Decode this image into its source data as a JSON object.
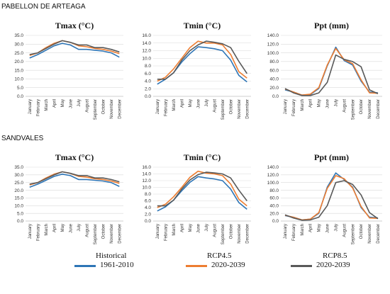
{
  "sections": [
    {
      "title": "PABELLON DE ARTEAGA"
    },
    {
      "title": "SANDVALES"
    }
  ],
  "months": [
    "January",
    "February",
    "March",
    "April",
    "May",
    "June",
    "July",
    "August",
    "September",
    "October",
    "November",
    "December"
  ],
  "series_meta": [
    {
      "name_top": "Historical",
      "name_bottom": "1961-2010",
      "color": "#2e75b6"
    },
    {
      "name_top": "RCP4.5",
      "name_bottom": "2020-2039",
      "color": "#ed7d31"
    },
    {
      "name_top": "RCP8.5",
      "name_bottom": "2020-2039",
      "color": "#595959"
    }
  ],
  "chart_data": [
    {
      "type": "line",
      "title": "Tmax (°C)",
      "region": "PABELLON DE ARTEAGA",
      "ylim": [
        0,
        35
      ],
      "yticks": [
        "0.0",
        "5.0",
        "10.0",
        "15.0",
        "20.0",
        "25.0",
        "30.0",
        "35.0"
      ],
      "categories": [
        "January",
        "February",
        "March",
        "April",
        "May",
        "June",
        "July",
        "August",
        "September",
        "October",
        "November",
        "December"
      ],
      "series": [
        {
          "values": [
            22.0,
            24.0,
            26.5,
            29.0,
            30.5,
            29.5,
            27.0,
            27.0,
            26.5,
            26.0,
            25.0,
            22.5
          ]
        },
        {
          "values": [
            23.5,
            25.0,
            28.0,
            30.5,
            32.0,
            31.0,
            29.0,
            28.5,
            27.5,
            27.0,
            26.0,
            24.5
          ]
        },
        {
          "values": [
            24.0,
            25.0,
            27.5,
            30.0,
            32.0,
            31.0,
            29.5,
            29.5,
            28.0,
            28.0,
            27.0,
            25.5
          ]
        }
      ]
    },
    {
      "type": "line",
      "title": "Tmin (°C)",
      "region": "PABELLON DE ARTEAGA",
      "ylim": [
        0,
        16
      ],
      "yticks": [
        "0.0",
        "2.0",
        "4.0",
        "6.0",
        "8.0",
        "10.0",
        "12.0",
        "14.0",
        "16.0"
      ],
      "categories": [
        "January",
        "February",
        "March",
        "April",
        "May",
        "June",
        "July",
        "August",
        "September",
        "October",
        "November",
        "December"
      ],
      "series": [
        {
          "values": [
            3.2,
            4.5,
            6.2,
            9.0,
            11.2,
            13.0,
            12.8,
            12.5,
            12.0,
            9.5,
            5.5,
            3.8
          ]
        },
        {
          "values": [
            4.0,
            5.0,
            7.2,
            10.0,
            12.8,
            14.5,
            14.0,
            14.0,
            13.5,
            11.0,
            6.5,
            4.8
          ]
        },
        {
          "values": [
            4.5,
            4.5,
            6.2,
            9.5,
            12.0,
            13.5,
            14.5,
            14.2,
            13.8,
            12.8,
            9.2,
            6.0
          ]
        }
      ]
    },
    {
      "type": "line",
      "title": "Ppt (mm)",
      "region": "PABELLON DE ARTEAGA",
      "ylim": [
        0,
        140
      ],
      "yticks": [
        "0.0",
        "20.0",
        "40.0",
        "60.0",
        "80.0",
        "100.0",
        "120.0",
        "140.0"
      ],
      "categories": [
        "January",
        "February",
        "March",
        "April",
        "May",
        "June",
        "July",
        "August",
        "September",
        "October",
        "November",
        "December"
      ],
      "series": [
        {
          "values": [
            15,
            10,
            3,
            4,
            18,
            70,
            113,
            82,
            72,
            35,
            10,
            8
          ]
        },
        {
          "values": [
            17,
            10,
            3,
            5,
            20,
            72,
            110,
            84,
            75,
            38,
            8,
            7
          ]
        },
        {
          "values": [
            18,
            8,
            2,
            2,
            8,
            32,
            95,
            85,
            80,
            68,
            15,
            6
          ]
        }
      ]
    },
    {
      "type": "line",
      "title": "Tmax (°C)",
      "region": "SANDVALES",
      "ylim": [
        0,
        35
      ],
      "yticks": [
        "0.0",
        "5.0",
        "10.0",
        "15.0",
        "20.0",
        "25.0",
        "30.0",
        "35.0"
      ],
      "categories": [
        "January",
        "February",
        "March",
        "April",
        "May",
        "June",
        "July",
        "August",
        "September",
        "October",
        "November",
        "December"
      ],
      "series": [
        {
          "values": [
            22.0,
            24.0,
            26.5,
            29.0,
            30.5,
            29.5,
            27.0,
            27.0,
            26.5,
            26.0,
            25.0,
            22.5
          ]
        },
        {
          "values": [
            23.5,
            25.0,
            28.0,
            30.5,
            32.0,
            31.0,
            29.0,
            28.5,
            27.5,
            27.0,
            26.0,
            24.5
          ]
        },
        {
          "values": [
            24.0,
            25.0,
            27.5,
            30.0,
            32.0,
            31.0,
            29.5,
            29.5,
            28.0,
            28.0,
            27.0,
            25.5
          ]
        }
      ]
    },
    {
      "type": "line",
      "title": "Tmin (°C)",
      "region": "SANDVALES",
      "ylim": [
        0,
        16
      ],
      "yticks": [
        "0.0",
        "2.0",
        "4.0",
        "6.0",
        "8.0",
        "10.0",
        "12.0",
        "14.0",
        "16.0"
      ],
      "categories": [
        "January",
        "February",
        "March",
        "April",
        "May",
        "June",
        "July",
        "August",
        "September",
        "October",
        "November",
        "December"
      ],
      "series": [
        {
          "values": [
            3.0,
            4.2,
            6.2,
            9.0,
            11.5,
            13.2,
            12.8,
            12.5,
            12.0,
            9.5,
            5.5,
            3.5
          ]
        },
        {
          "values": [
            4.0,
            5.0,
            7.2,
            10.0,
            13.0,
            14.8,
            14.2,
            14.0,
            13.5,
            11.0,
            6.5,
            4.5
          ]
        },
        {
          "values": [
            4.5,
            4.5,
            6.2,
            9.5,
            12.2,
            13.8,
            14.5,
            14.3,
            14.0,
            12.8,
            9.2,
            6.0
          ]
        }
      ]
    },
    {
      "type": "line",
      "title": "Ppt (mm)",
      "region": "SANDVALES",
      "ylim": [
        0,
        140
      ],
      "yticks": [
        "0.0",
        "20.0",
        "40.0",
        "60.0",
        "80.0",
        "100.0",
        "120.0",
        "140.0"
      ],
      "categories": [
        "January",
        "February",
        "March",
        "April",
        "May",
        "June",
        "July",
        "August",
        "September",
        "October",
        "November",
        "December"
      ],
      "series": [
        {
          "values": [
            14,
            10,
            3,
            5,
            20,
            88,
            125,
            108,
            88,
            35,
            10,
            8
          ]
        },
        {
          "values": [
            15,
            10,
            3,
            5,
            22,
            85,
            118,
            110,
            86,
            38,
            8,
            7
          ]
        },
        {
          "values": [
            16,
            8,
            2,
            3,
            10,
            40,
            100,
            105,
            95,
            68,
            22,
            6
          ]
        }
      ]
    }
  ]
}
